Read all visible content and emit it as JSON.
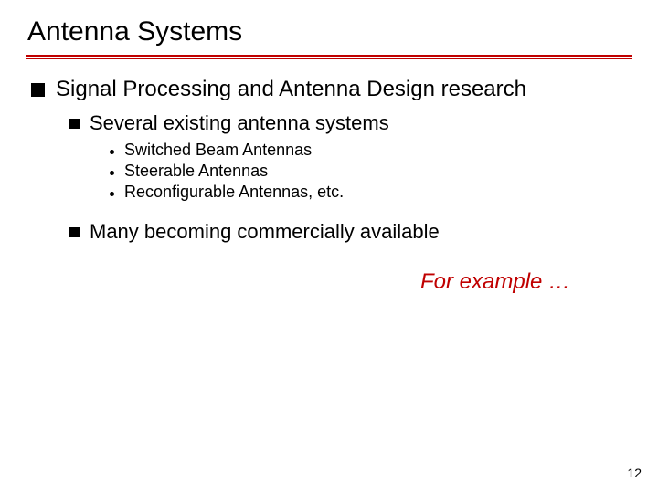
{
  "title": "Antenna Systems",
  "level1": {
    "text": "Signal Processing and Antenna Design research"
  },
  "level2_items": [
    {
      "text": "Several existing antenna systems"
    },
    {
      "text": "Many becoming commercially available"
    }
  ],
  "level3_items": [
    {
      "text": "Switched Beam Antennas"
    },
    {
      "text": "Steerable Antennas"
    },
    {
      "text": "Reconfigurable Antennas, etc."
    }
  ],
  "example": "For example …",
  "page_number": "12",
  "colors": {
    "accent": "#c00000",
    "text": "#000000",
    "background": "#ffffff"
  }
}
